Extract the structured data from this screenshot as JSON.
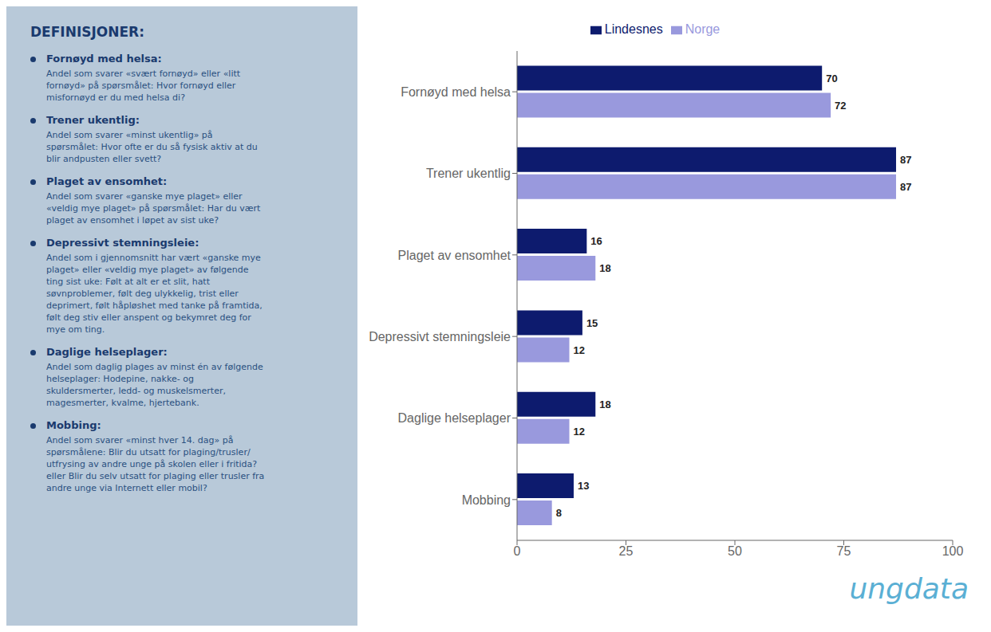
{
  "chart_data": {
    "type": "bar",
    "orientation": "horizontal",
    "categories": [
      "Fornøyd med helsa",
      "Trener ukentlig",
      "Plaget av ensomhet",
      "Depressivt stemningsleie",
      "Daglige helseplager",
      "Mobbing"
    ],
    "series": [
      {
        "name": "Lindesnes",
        "color": "#0d1b6e",
        "values": [
          70,
          87,
          16,
          15,
          18,
          13
        ]
      },
      {
        "name": "Norge",
        "color": "#9999dd",
        "values": [
          72,
          87,
          18,
          12,
          12,
          8
        ]
      }
    ],
    "xlim": [
      0,
      100
    ],
    "xticks": [
      0,
      25,
      50,
      75,
      100
    ],
    "data_labels": true,
    "grid": false,
    "legend": "top",
    "annotations": {
      "heading": "DEFINISJONER:",
      "definitions": [
        {
          "header": "Fornøyd med helsa:",
          "body": "Andel som svarer «svært fornøyd» eller «litt\nfornøyd» på spørsmålet: Hvor fornøyd eller\nmisfornøyd er du med helsa di?"
        },
        {
          "header": "Trener ukentlig:",
          "body": "Andel som svarer «minst ukentlig» på\nspørsmålet: Hvor ofte er du så fysisk aktiv at du\nblir andpusten eller svett?"
        },
        {
          "header": "Plaget av ensomhet:",
          "body": "Andel som svarer «ganske mye plaget» eller\n«veldig mye plaget» på spørsmålet: Har du vært\nplaget av ensomhet i løpet av sist uke?"
        },
        {
          "header": "Depressivt stemningsleie:",
          "body": "Andel som i gjennomsnitt har vært «ganske mye\nplaget» eller «veldig mye plaget» av følgende\nting sist uke: Følt at alt er et slit, hatt\nsøvnproblemer, følt deg ulykkelig, trist eller\ndeprimert, følt håpløshet med tanke på framtida,\nfølt deg stiv eller anspent og bekymret deg for\nmye om ting."
        },
        {
          "header": "Daglige helseplager:",
          "body": "Andel som daglig plages av minst én av følgende\nhelseplager: Hodepine, nakke- og\nskuldersmerter, ledd- og muskelsmerter,\nmagesmerter, kvalme, hjertebank."
        },
        {
          "header": "Mobbing:",
          "body": "Andel som svarer «minst hver 14. dag» på\nspørsmålene: Blir du utsatt for plaging/trusler/\nutfrysing av andre unge på skolen eller i fritida?\neller Blir du selv utsatt for plaging eller trusler fra\nandre unge via Internett eller mobil?"
        }
      ],
      "logo": "ungdata"
    }
  }
}
